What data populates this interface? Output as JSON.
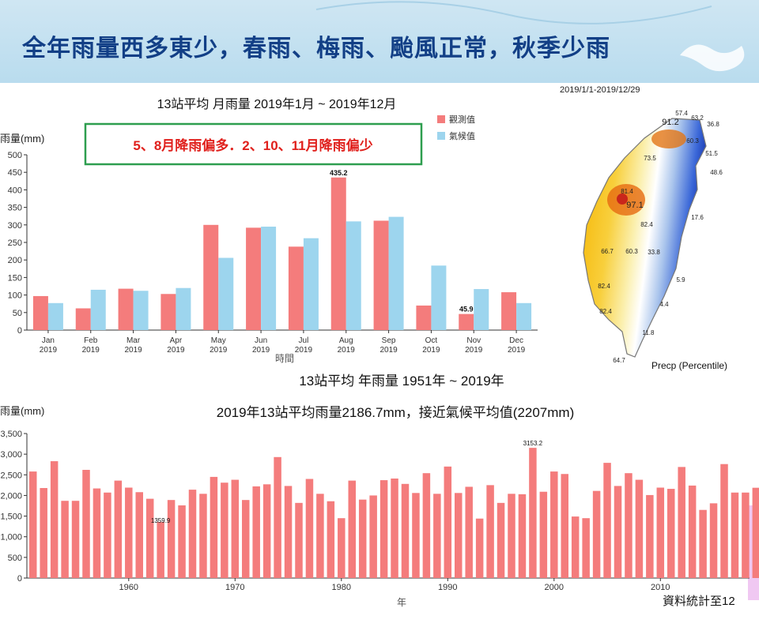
{
  "banner": {
    "title": "全年雨量西多東少，春雨、梅雨、颱風正常，秋季少雨"
  },
  "monthly_chart": {
    "title": "13站平均 月雨量 2019年1月 ~ 2019年12月",
    "ylabel": "雨量(mm)",
    "xlabel": "時間",
    "callout": "5、8月降雨偏多．2、10、11月降雨偏少",
    "legend": [
      "觀測值",
      "氣候值"
    ],
    "colors": {
      "observed": "#f47c7c",
      "climate": "#9dd5ee",
      "callout_border": "#2e9e4f",
      "callout_text": "#e0201c"
    }
  },
  "annual_chart": {
    "title": "13站平均 年雨量 1951年 ~ 2019年",
    "subtitle": "2019年13站平均雨量2186.7mm，接近氣候平均值(2207mm)",
    "ylabel": "雨量(mm)",
    "xlabel": "年",
    "footnote": "資料統計至12",
    "color": "#f47c7c"
  },
  "map": {
    "date_range": "2019/1/1-2019/12/29",
    "legend_label": "Precp (Percentile)",
    "station_values": [
      "57.4",
      "91.2",
      "63.2",
      "36.8",
      "60.3",
      "51.5",
      "73.5",
      "48.6",
      "81.4",
      "97.1",
      "17.6",
      "82.4",
      "66.7",
      "60.3",
      "33.8",
      "5.9",
      "82.4",
      "4.4",
      "82.4",
      "11.8",
      "64.7"
    ]
  },
  "chart_data": [
    {
      "type": "bar",
      "title": "13站平均 月雨量 2019年1月 ~ 2019年12月",
      "xlabel": "時間",
      "ylabel": "雨量(mm)",
      "categories": [
        "Jan\n2019",
        "Feb\n2019",
        "Mar\n2019",
        "Apr\n2019",
        "May\n2019",
        "Jun\n2019",
        "Jul\n2019",
        "Aug\n2019",
        "Sep\n2019",
        "Oct\n2019",
        "Nov\n2019",
        "Dec\n2019"
      ],
      "series": [
        {
          "name": "觀測值",
          "values": [
            97,
            62,
            118,
            103,
            300,
            292,
            238,
            435.2,
            312,
            70,
            45.9,
            108
          ]
        },
        {
          "name": "氣候值",
          "values": [
            77,
            115,
            112,
            120,
            206,
            295,
            262,
            310,
            323,
            184,
            117,
            77
          ]
        }
      ],
      "data_labels": [
        {
          "category": "Aug\n2019",
          "value": "435.2"
        },
        {
          "category": "Nov\n2019",
          "value": "45.9"
        }
      ],
      "ylim": [
        0,
        500
      ],
      "yticks": [
        "0",
        "50",
        "100",
        "150",
        "200",
        "250",
        "300",
        "350",
        "400",
        "450",
        "500"
      ],
      "grid": false,
      "legend_position": "top-right"
    },
    {
      "type": "bar",
      "title": "13站平均 年雨量 1951年 ~ 2019年",
      "xlabel": "年",
      "ylabel": "雨量(mm)",
      "x": [
        1951,
        1952,
        1953,
        1954,
        1955,
        1956,
        1957,
        1958,
        1959,
        1960,
        1961,
        1962,
        1963,
        1964,
        1965,
        1966,
        1967,
        1968,
        1969,
        1970,
        1971,
        1972,
        1973,
        1974,
        1975,
        1976,
        1977,
        1978,
        1979,
        1980,
        1981,
        1982,
        1983,
        1984,
        1985,
        1986,
        1987,
        1988,
        1989,
        1990,
        1991,
        1992,
        1993,
        1994,
        1995,
        1996,
        1997,
        1998,
        1999,
        2000,
        2001,
        2002,
        2003,
        2004,
        2005,
        2006,
        2007,
        2008,
        2009,
        2010,
        2011,
        2012,
        2013,
        2014,
        2015,
        2016,
        2017,
        2018,
        2019
      ],
      "values": [
        2580,
        2180,
        2830,
        1870,
        1870,
        2620,
        2170,
        2070,
        2360,
        2190,
        2080,
        1920,
        1360,
        1890,
        1760,
        2140,
        2040,
        2450,
        2310,
        2380,
        1890,
        2220,
        2270,
        2930,
        2230,
        1820,
        2400,
        2040,
        1860,
        1450,
        2360,
        1900,
        2000,
        2370,
        2410,
        2280,
        2060,
        2540,
        2040,
        2700,
        2060,
        2210,
        1440,
        2250,
        1820,
        2040,
        2030,
        3153.2,
        2090,
        2580,
        2520,
        1490,
        1450,
        2110,
        2790,
        2230,
        2540,
        2380,
        2010,
        2190,
        2160,
        2690,
        2240,
        1650,
        1810,
        2760,
        2070,
        2070,
        2186.7
      ],
      "data_labels": [
        {
          "x": 1963,
          "value": "1359.9"
        },
        {
          "x": 1998,
          "value": "3153.2"
        }
      ],
      "ylim": [
        0,
        3500
      ],
      "yticks": [
        "0",
        "500",
        "1,000",
        "1,500",
        "2,000",
        "2,500",
        "3,000",
        "3,500"
      ],
      "xticks": [
        "1960",
        "1970",
        "1980",
        "1990",
        "2000",
        "2010"
      ],
      "grid": false
    }
  ]
}
